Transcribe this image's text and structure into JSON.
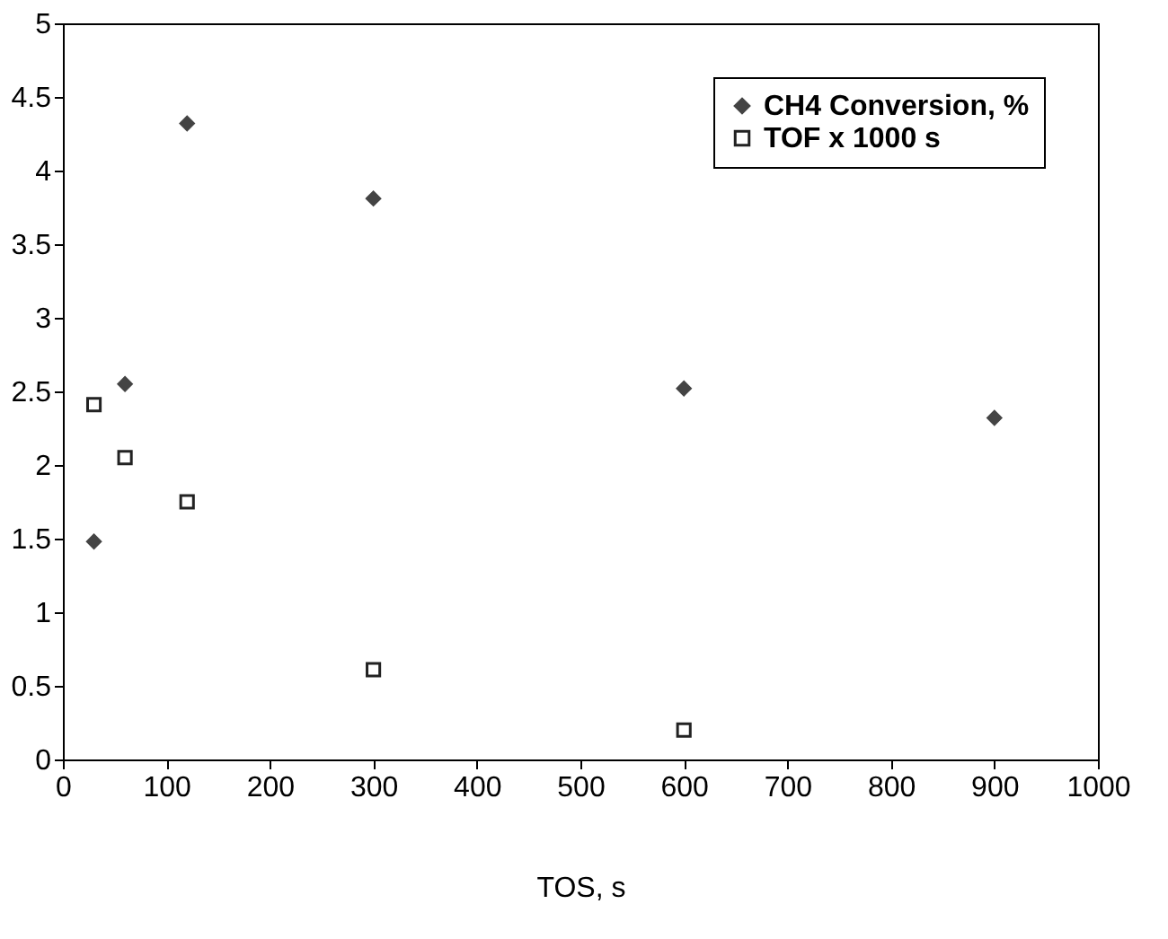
{
  "chart_data": {
    "type": "scatter",
    "xlabel": "TOS, s",
    "xlim": [
      0,
      1000
    ],
    "xticks": [
      0,
      100,
      200,
      300,
      400,
      500,
      600,
      700,
      800,
      900,
      1000
    ],
    "ylim": [
      0,
      5
    ],
    "yticks": [
      0,
      0.5,
      1,
      1.5,
      2,
      2.5,
      3,
      3.5,
      4,
      4.5,
      5
    ],
    "grid": false,
    "legend": "top right",
    "series": [
      {
        "name": "CH4 Conversion, %",
        "color": "#444444",
        "marker": "diamond",
        "x": [
          30,
          60,
          120,
          300,
          600,
          900
        ],
        "values": [
          1.48,
          2.55,
          4.32,
          3.81,
          2.52,
          2.32
        ]
      },
      {
        "name": "TOF x 1000 s",
        "color": "#222222",
        "marker": "square",
        "x": [
          30,
          60,
          120,
          300,
          600
        ],
        "values": [
          2.41,
          2.05,
          1.75,
          0.61,
          0.2
        ]
      }
    ]
  }
}
